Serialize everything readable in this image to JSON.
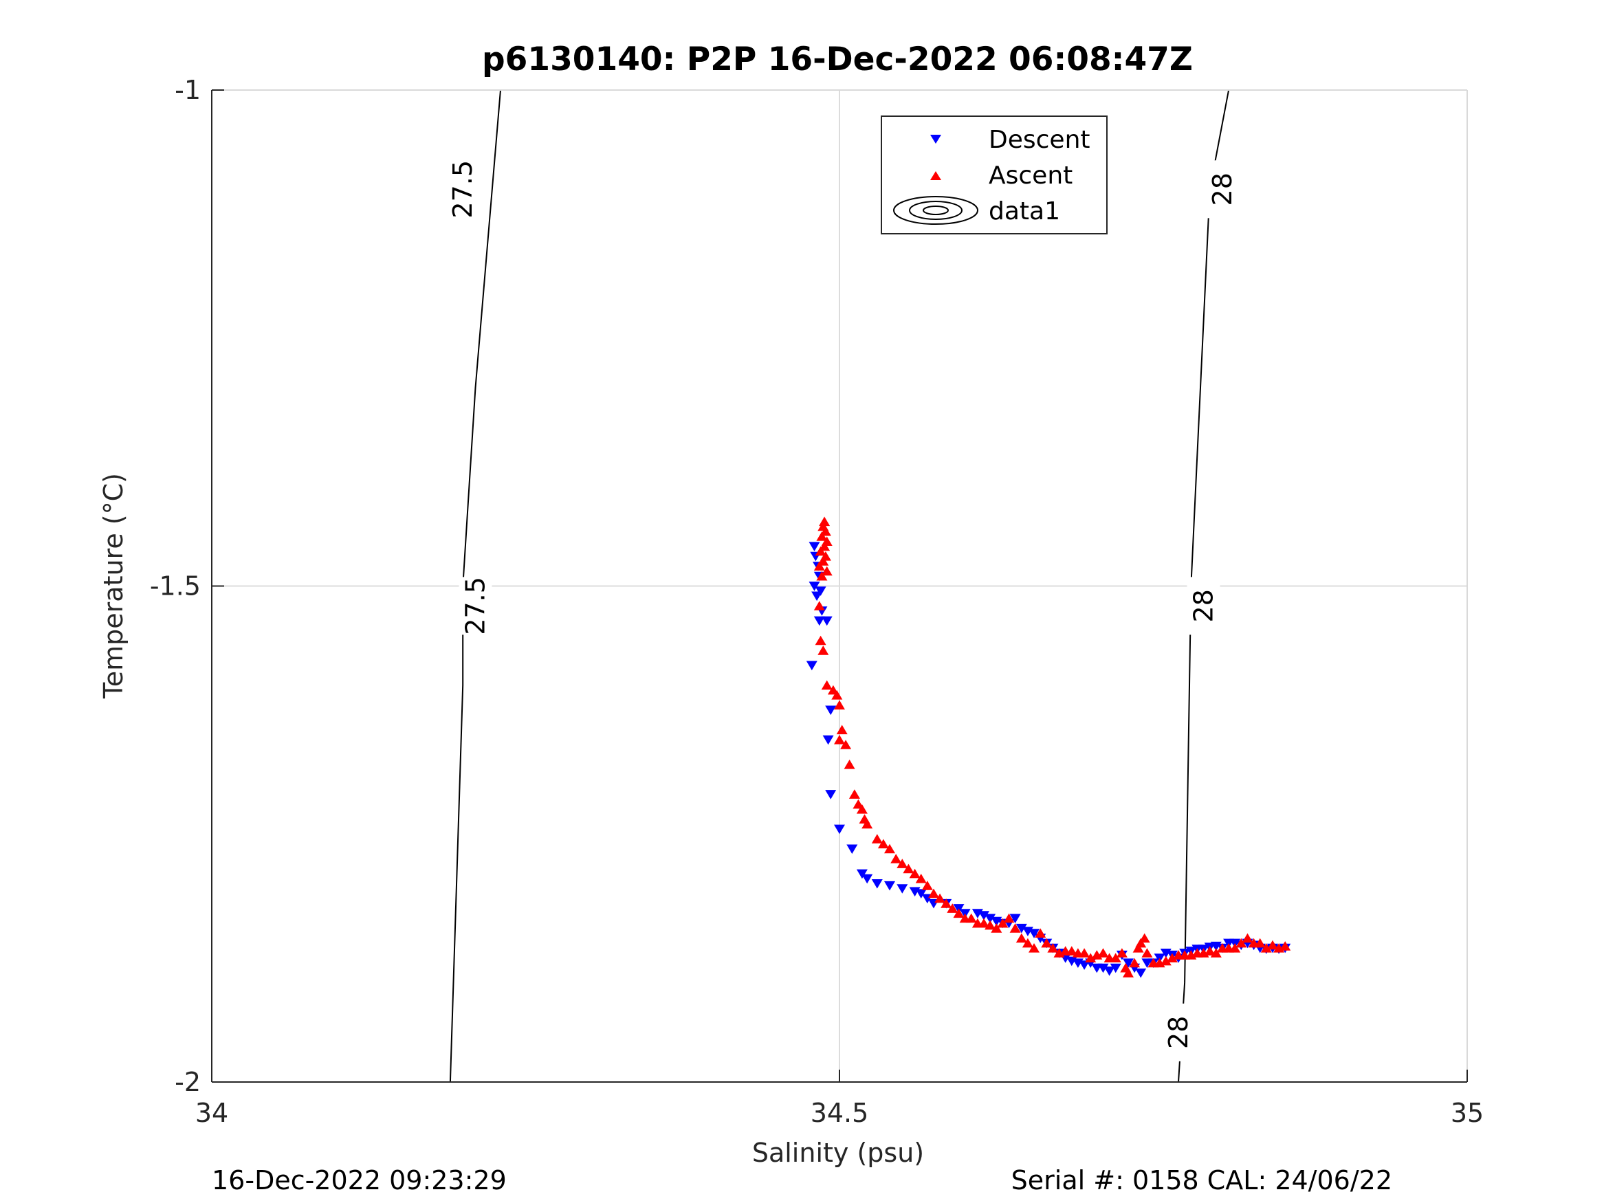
{
  "chart_data": {
    "type": "scatter",
    "title": "p6130140: P2P 16-Dec-2022 06:08:47Z",
    "xlabel": "Salinity (psu)",
    "ylabel": "Temperature (°C)",
    "xlim": [
      34,
      35
    ],
    "ylim": [
      -2,
      -1
    ],
    "xticks": [
      "34",
      "34.5",
      "35"
    ],
    "yticks": [
      "-2",
      "-1.5",
      "-1"
    ],
    "grid": true,
    "legend_position": "top-center",
    "legend": [
      "Descent",
      "Ascent",
      "data1"
    ],
    "series": [
      {
        "name": "Descent",
        "marker": "triangle-down",
        "color": "#0000ff",
        "points": [
          [
            34.48,
            -1.46
          ],
          [
            34.481,
            -1.47
          ],
          [
            34.483,
            -1.48
          ],
          [
            34.484,
            -1.49
          ],
          [
            34.48,
            -1.5
          ],
          [
            34.485,
            -1.505
          ],
          [
            34.482,
            -1.51
          ],
          [
            34.486,
            -1.525
          ],
          [
            34.484,
            -1.535
          ],
          [
            34.49,
            -1.535
          ],
          [
            34.478,
            -1.58
          ],
          [
            34.493,
            -1.625
          ],
          [
            34.491,
            -1.655
          ],
          [
            34.493,
            -1.71
          ],
          [
            34.5,
            -1.745
          ],
          [
            34.51,
            -1.765
          ],
          [
            34.518,
            -1.79
          ],
          [
            34.522,
            -1.795
          ],
          [
            34.53,
            -1.8
          ],
          [
            34.54,
            -1.802
          ],
          [
            34.55,
            -1.805
          ],
          [
            34.56,
            -1.808
          ],
          [
            34.565,
            -1.81
          ],
          [
            34.57,
            -1.815
          ],
          [
            34.575,
            -1.82
          ],
          [
            34.585,
            -1.82
          ],
          [
            34.595,
            -1.825
          ],
          [
            34.6,
            -1.83
          ],
          [
            34.61,
            -1.83
          ],
          [
            34.615,
            -1.832
          ],
          [
            34.62,
            -1.835
          ],
          [
            34.625,
            -1.838
          ],
          [
            34.63,
            -1.84
          ],
          [
            34.635,
            -1.84
          ],
          [
            34.64,
            -1.835
          ],
          [
            34.645,
            -1.845
          ],
          [
            34.65,
            -1.848
          ],
          [
            34.655,
            -1.85
          ],
          [
            34.66,
            -1.855
          ],
          [
            34.665,
            -1.86
          ],
          [
            34.67,
            -1.865
          ],
          [
            34.675,
            -1.87
          ],
          [
            34.68,
            -1.875
          ],
          [
            34.685,
            -1.878
          ],
          [
            34.69,
            -1.88
          ],
          [
            34.695,
            -1.882
          ],
          [
            34.7,
            -1.88
          ],
          [
            34.705,
            -1.885
          ],
          [
            34.71,
            -1.885
          ],
          [
            34.715,
            -1.888
          ],
          [
            34.72,
            -1.885
          ],
          [
            34.725,
            -1.872
          ],
          [
            34.73,
            -1.88
          ],
          [
            34.735,
            -1.885
          ],
          [
            34.74,
            -1.89
          ],
          [
            34.745,
            -1.88
          ],
          [
            34.75,
            -1.88
          ],
          [
            34.755,
            -1.875
          ],
          [
            34.76,
            -1.87
          ],
          [
            34.765,
            -1.872
          ],
          [
            34.77,
            -1.875
          ],
          [
            34.775,
            -1.87
          ],
          [
            34.78,
            -1.868
          ],
          [
            34.785,
            -1.866
          ],
          [
            34.79,
            -1.866
          ],
          [
            34.795,
            -1.864
          ],
          [
            34.8,
            -1.863
          ],
          [
            34.805,
            -1.865
          ],
          [
            34.81,
            -1.86
          ],
          [
            34.815,
            -1.86
          ],
          [
            34.82,
            -1.862
          ],
          [
            34.825,
            -1.86
          ],
          [
            34.83,
            -1.862
          ],
          [
            34.835,
            -1.865
          ],
          [
            34.84,
            -1.866
          ],
          [
            34.845,
            -1.865
          ],
          [
            34.85,
            -1.866
          ],
          [
            34.855,
            -1.865
          ]
        ]
      },
      {
        "name": "Ascent",
        "marker": "triangle-up",
        "color": "#ff0000",
        "points": [
          [
            34.488,
            -1.435
          ],
          [
            34.487,
            -1.44
          ],
          [
            34.489,
            -1.445
          ],
          [
            34.486,
            -1.45
          ],
          [
            34.49,
            -1.455
          ],
          [
            34.488,
            -1.46
          ],
          [
            34.485,
            -1.465
          ],
          [
            34.489,
            -1.47
          ],
          [
            34.487,
            -1.475
          ],
          [
            34.484,
            -1.48
          ],
          [
            34.49,
            -1.485
          ],
          [
            34.486,
            -1.49
          ],
          [
            34.484,
            -1.52
          ],
          [
            34.485,
            -1.555
          ],
          [
            34.487,
            -1.565
          ],
          [
            34.49,
            -1.6
          ],
          [
            34.495,
            -1.605
          ],
          [
            34.498,
            -1.61
          ],
          [
            34.5,
            -1.62
          ],
          [
            34.502,
            -1.645
          ],
          [
            34.5,
            -1.655
          ],
          [
            34.505,
            -1.66
          ],
          [
            34.508,
            -1.68
          ],
          [
            34.512,
            -1.71
          ],
          [
            34.515,
            -1.72
          ],
          [
            34.518,
            -1.725
          ],
          [
            34.52,
            -1.735
          ],
          [
            34.522,
            -1.74
          ],
          [
            34.53,
            -1.755
          ],
          [
            34.535,
            -1.76
          ],
          [
            34.54,
            -1.765
          ],
          [
            34.545,
            -1.775
          ],
          [
            34.55,
            -1.78
          ],
          [
            34.555,
            -1.785
          ],
          [
            34.56,
            -1.79
          ],
          [
            34.565,
            -1.795
          ],
          [
            34.57,
            -1.802
          ],
          [
            34.575,
            -1.81
          ],
          [
            34.58,
            -1.815
          ],
          [
            34.585,
            -1.82
          ],
          [
            34.59,
            -1.825
          ],
          [
            34.595,
            -1.83
          ],
          [
            34.6,
            -1.835
          ],
          [
            34.605,
            -1.835
          ],
          [
            34.61,
            -1.84
          ],
          [
            34.615,
            -1.84
          ],
          [
            34.62,
            -1.842
          ],
          [
            34.625,
            -1.845
          ],
          [
            34.63,
            -1.84
          ],
          [
            34.635,
            -1.835
          ],
          [
            34.64,
            -1.845
          ],
          [
            34.645,
            -1.855
          ],
          [
            34.65,
            -1.86
          ],
          [
            34.655,
            -1.865
          ],
          [
            34.66,
            -1.85
          ],
          [
            34.665,
            -1.86
          ],
          [
            34.67,
            -1.865
          ],
          [
            34.675,
            -1.87
          ],
          [
            34.68,
            -1.868
          ],
          [
            34.685,
            -1.868
          ],
          [
            34.69,
            -1.87
          ],
          [
            34.695,
            -1.87
          ],
          [
            34.7,
            -1.875
          ],
          [
            34.705,
            -1.872
          ],
          [
            34.71,
            -1.87
          ],
          [
            34.715,
            -1.875
          ],
          [
            34.72,
            -1.875
          ],
          [
            34.725,
            -1.87
          ],
          [
            34.728,
            -1.885
          ],
          [
            34.73,
            -1.89
          ],
          [
            34.735,
            -1.88
          ],
          [
            34.738,
            -1.865
          ],
          [
            34.74,
            -1.86
          ],
          [
            34.743,
            -1.855
          ],
          [
            34.745,
            -1.87
          ],
          [
            34.75,
            -1.88
          ],
          [
            34.755,
            -1.88
          ],
          [
            34.76,
            -1.878
          ],
          [
            34.765,
            -1.875
          ],
          [
            34.77,
            -1.872
          ],
          [
            34.775,
            -1.872
          ],
          [
            34.78,
            -1.872
          ],
          [
            34.785,
            -1.87
          ],
          [
            34.79,
            -1.87
          ],
          [
            34.795,
            -1.868
          ],
          [
            34.8,
            -1.87
          ],
          [
            34.805,
            -1.865
          ],
          [
            34.81,
            -1.865
          ],
          [
            34.815,
            -1.865
          ],
          [
            34.82,
            -1.86
          ],
          [
            34.825,
            -1.855
          ],
          [
            34.83,
            -1.86
          ],
          [
            34.835,
            -1.86
          ],
          [
            34.84,
            -1.865
          ],
          [
            34.845,
            -1.862
          ],
          [
            34.85,
            -1.865
          ],
          [
            34.855,
            -1.863
          ]
        ]
      }
    ],
    "contours": [
      {
        "label": "27.5",
        "points": [
          [
            34.19,
            -2
          ],
          [
            34.2,
            -1.6
          ],
          [
            34.2,
            -1.5
          ],
          [
            34.21,
            -1.3
          ],
          [
            34.23,
            -1
          ]
        ],
        "label_positions": [
          [
            34.21,
            -1.52
          ],
          [
            34.2,
            -1.1
          ]
        ]
      },
      {
        "label": "28",
        "points": [
          [
            34.77,
            -2
          ],
          [
            34.775,
            -1.9
          ],
          [
            34.78,
            -1.5
          ],
          [
            34.795,
            -1.1
          ],
          [
            34.81,
            -1
          ]
        ],
        "label_positions": [
          [
            34.77,
            -1.95
          ],
          [
            34.79,
            -1.52
          ],
          [
            34.805,
            -1.1
          ]
        ]
      }
    ]
  },
  "footer": {
    "left": "16-Dec-2022 09:23:29",
    "right": "Serial #: 0158  CAL: 24/06/22"
  }
}
